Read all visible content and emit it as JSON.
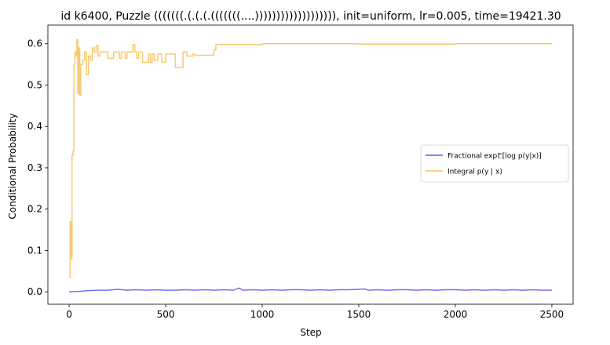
{
  "chart_data": {
    "type": "line",
    "title": "id k6400, Puzzle (((((((.(.(.(.(((((((....))))))))))))))))))), init=uniform, lr=0.005, time=19421.30",
    "xlabel": "Step",
    "ylabel": "Conditional Probability",
    "xlim": [
      -110,
      2610
    ],
    "ylim": [
      -0.03,
      0.645
    ],
    "xticks": [
      0,
      500,
      1000,
      1500,
      2000,
      2500
    ],
    "yticks": [
      0.0,
      0.1,
      0.2,
      0.3,
      0.4,
      0.5,
      0.6
    ],
    "xtick_labels": [
      "0",
      "500",
      "1000",
      "1500",
      "2000",
      "2500"
    ],
    "ytick_labels": [
      "0.0",
      "0.1",
      "0.2",
      "0.3",
      "0.4",
      "0.5",
      "0.6"
    ],
    "grid": false,
    "legend_position": "center-right",
    "series": [
      {
        "name": "Fractional exp𝔼[log p(y|x)]",
        "color": "#5b5bf0",
        "x": [
          0,
          50,
          100,
          150,
          200,
          250,
          300,
          350,
          400,
          450,
          500,
          550,
          600,
          650,
          700,
          750,
          800,
          850,
          880,
          900,
          950,
          1000,
          1050,
          1100,
          1150,
          1200,
          1250,
          1300,
          1350,
          1400,
          1450,
          1500,
          1530,
          1550,
          1600,
          1650,
          1700,
          1750,
          1800,
          1850,
          1900,
          1950,
          2000,
          2050,
          2100,
          2150,
          2200,
          2250,
          2300,
          2350,
          2400,
          2450,
          2500
        ],
        "y": [
          0.0,
          0.001,
          0.003,
          0.004,
          0.004,
          0.006,
          0.004,
          0.005,
          0.004,
          0.005,
          0.004,
          0.004,
          0.005,
          0.004,
          0.005,
          0.004,
          0.005,
          0.004,
          0.009,
          0.004,
          0.005,
          0.004,
          0.005,
          0.004,
          0.005,
          0.005,
          0.004,
          0.005,
          0.004,
          0.005,
          0.005,
          0.006,
          0.007,
          0.004,
          0.005,
          0.004,
          0.005,
          0.005,
          0.004,
          0.005,
          0.004,
          0.005,
          0.005,
          0.004,
          0.005,
          0.004,
          0.005,
          0.004,
          0.005,
          0.004,
          0.005,
          0.004,
          0.004
        ]
      },
      {
        "name": "Integral p(y | x)",
        "color": "#f7c15a",
        "x": [
          0,
          5,
          5,
          10,
          10,
          15,
          15,
          20,
          20,
          25,
          25,
          30,
          30,
          35,
          35,
          40,
          40,
          45,
          45,
          50,
          50,
          55,
          55,
          60,
          60,
          70,
          70,
          80,
          80,
          90,
          90,
          100,
          100,
          110,
          110,
          120,
          120,
          130,
          130,
          140,
          140,
          150,
          150,
          160,
          160,
          180,
          180,
          200,
          200,
          230,
          230,
          240,
          240,
          260,
          260,
          270,
          270,
          290,
          290,
          300,
          300,
          330,
          330,
          340,
          340,
          350,
          350,
          360,
          360,
          380,
          380,
          410,
          410,
          420,
          420,
          430,
          430,
          440,
          440,
          460,
          460,
          480,
          480,
          500,
          500,
          530,
          530,
          550,
          550,
          590,
          590,
          610,
          610,
          640,
          640,
          650,
          650,
          750,
          750,
          760,
          760,
          800,
          800,
          1000,
          1000,
          1500,
          1500,
          2000,
          2000,
          2500
        ],
        "y": [
          0.035,
          0.035,
          0.17,
          0.17,
          0.08,
          0.08,
          0.33,
          0.33,
          0.34,
          0.34,
          0.55,
          0.55,
          0.58,
          0.58,
          0.57,
          0.57,
          0.61,
          0.61,
          0.48,
          0.48,
          0.59,
          0.59,
          0.475,
          0.475,
          0.55,
          0.55,
          0.56,
          0.56,
          0.58,
          0.58,
          0.525,
          0.525,
          0.57,
          0.57,
          0.56,
          0.56,
          0.59,
          0.59,
          0.58,
          0.58,
          0.595,
          0.595,
          0.57,
          0.57,
          0.58,
          0.58,
          0.58,
          0.58,
          0.565,
          0.565,
          0.58,
          0.58,
          0.58,
          0.58,
          0.565,
          0.565,
          0.58,
          0.58,
          0.565,
          0.565,
          0.58,
          0.58,
          0.598,
          0.598,
          0.58,
          0.58,
          0.565,
          0.565,
          0.58,
          0.58,
          0.555,
          0.555,
          0.575,
          0.575,
          0.555,
          0.555,
          0.575,
          0.575,
          0.56,
          0.56,
          0.575,
          0.575,
          0.555,
          0.555,
          0.575,
          0.575,
          0.575,
          0.575,
          0.542,
          0.542,
          0.58,
          0.58,
          0.57,
          0.57,
          0.575,
          0.575,
          0.572,
          0.572,
          0.585,
          0.585,
          0.598,
          0.598,
          0.598,
          0.598,
          0.6,
          0.6,
          0.599,
          0.599,
          0.6,
          0.6
        ]
      }
    ]
  }
}
